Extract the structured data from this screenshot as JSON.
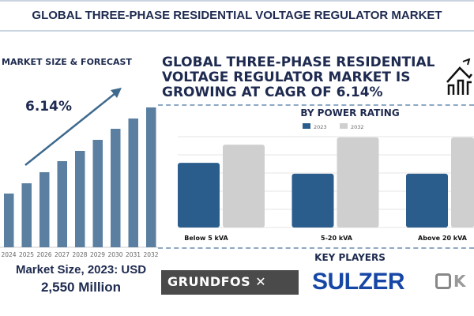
{
  "header": {
    "title": "GLOBAL THREE-PHASE RESIDENTIAL VOLTAGE REGULATOR MARKET"
  },
  "left": {
    "section_label": "MARKET SIZE & FORECAST",
    "cagr": "6.14%",
    "market_size_line1": "Market Size, 2023: USD",
    "market_size_line2": "2,550 Million"
  },
  "right": {
    "headline": "GLOBAL THREE-PHASE RESIDENTIAL VOLTAGE REGULATOR MARKET IS GROWING AT CAGR OF 6.14%",
    "icon": "house-growth-icon",
    "key_players_title": "KEY PLAYERS",
    "key_players": [
      "GRUNDFOS",
      "SULZER",
      "K"
    ]
  },
  "colors": {
    "navy": "#1e2a4f",
    "forecast_bar": "#5b7fa0",
    "series_2023": "#2a5d8c",
    "series_2032": "#cfcfcf"
  },
  "chart_data": [
    {
      "type": "bar",
      "title": "MARKET SIZE & FORECAST",
      "categories": [
        "2024",
        "2025",
        "2026",
        "2027",
        "2028",
        "2029",
        "2030",
        "2031",
        "2032"
      ],
      "values": [
        68,
        81,
        95,
        109,
        122,
        136,
        150,
        163,
        177
      ],
      "annotation": "6.14%",
      "ylim": [
        0,
        180
      ],
      "grid": false
    },
    {
      "type": "bar",
      "title": "BY POWER RATING",
      "categories": [
        "Below 5 kVA",
        "5-20 kVA",
        "Above 20 kVA"
      ],
      "series": [
        {
          "name": "2023",
          "values": [
            3.56,
            2.96,
            2.96
          ]
        },
        {
          "name": "2032",
          "values": [
            4.56,
            4.96,
            4.96
          ]
        }
      ],
      "ylim": [
        0,
        5
      ],
      "grid": true,
      "legend": "top"
    }
  ]
}
